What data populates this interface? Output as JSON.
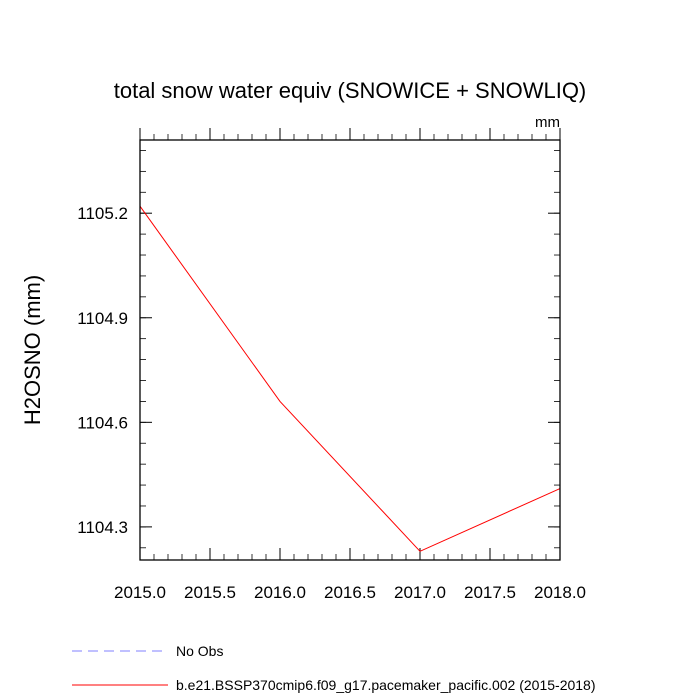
{
  "chart_data": {
    "type": "line",
    "title": "total snow water equiv (SNOWICE + SNOWLIQ)",
    "units_label": "mm",
    "xlabel": "",
    "ylabel": "H2OSNO  (mm)",
    "xlim": [
      2015.0,
      2018.0
    ],
    "ylim": [
      1104.205,
      1105.41
    ],
    "xticks": [
      2015.0,
      2015.5,
      2016.0,
      2016.5,
      2017.0,
      2017.5,
      2018.0
    ],
    "xtick_labels": [
      "2015.0",
      "2015.5",
      "2016.0",
      "2016.5",
      "2017.0",
      "2017.5",
      "2018.0"
    ],
    "yticks": [
      1104.3,
      1104.6,
      1104.9,
      1105.2
    ],
    "ytick_labels": [
      "1104.3",
      "1104.6",
      "1104.9",
      "1105.2"
    ],
    "series": [
      {
        "name": "b.e21.BSSP370cmip6.f09_g17.pacemaker_pacific.002 (2015-2018)",
        "color": "#ff0000",
        "style": "solid",
        "x": [
          2015,
          2016,
          2017,
          2018
        ],
        "y": [
          1105.22,
          1104.66,
          1104.23,
          1104.41
        ]
      }
    ],
    "legend": [
      {
        "label": "No Obs",
        "color": "#8080ff",
        "style": "dashed"
      },
      {
        "label": "b.e21.BSSP370cmip6.f09_g17.pacemaker_pacific.002 (2015-2018)",
        "color": "#ff0000",
        "style": "solid"
      }
    ]
  }
}
